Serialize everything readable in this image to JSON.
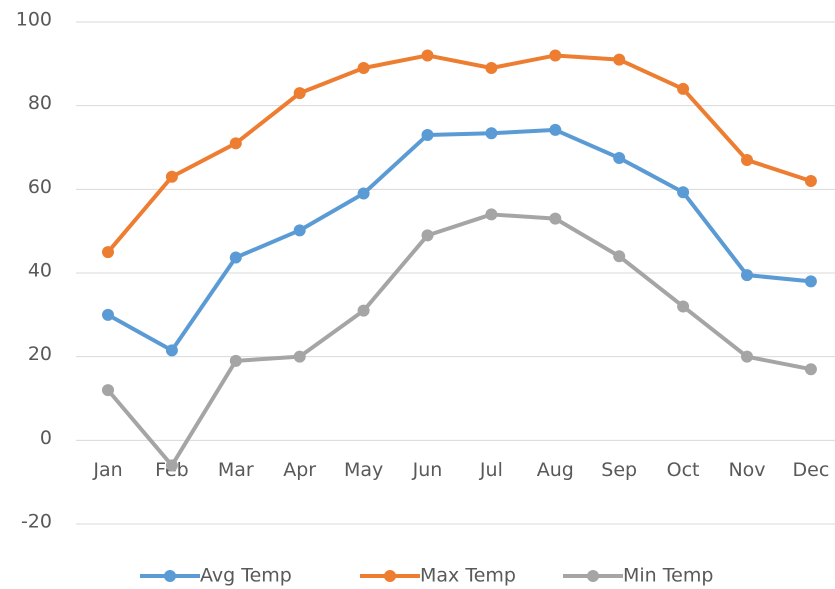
{
  "chart_data": {
    "type": "line",
    "categories": [
      "Jan",
      "Feb",
      "Mar",
      "Apr",
      "May",
      "Jun",
      "Jul",
      "Aug",
      "Sep",
      "Oct",
      "Nov",
      "Dec"
    ],
    "series": [
      {
        "name": "Avg Temp",
        "color": "#5b9bd5",
        "values": [
          30,
          21.5,
          43.7,
          50.2,
          59,
          73,
          73.4,
          74.2,
          67.5,
          59.3,
          39.5,
          38
        ]
      },
      {
        "name": "Max Temp",
        "color": "#ed7d31",
        "values": [
          45,
          63,
          71,
          83,
          89,
          92,
          89,
          92,
          91,
          84,
          67,
          62
        ]
      },
      {
        "name": "Min Temp",
        "color": "#a5a5a5",
        "values": [
          12,
          -6,
          19,
          20,
          31,
          49,
          54,
          53,
          44,
          32,
          20,
          17
        ]
      }
    ],
    "ylim": [
      -20,
      100
    ],
    "yticks": [
      -20,
      0,
      20,
      40,
      60,
      80,
      100
    ],
    "grid": true,
    "legend": "bottom"
  }
}
